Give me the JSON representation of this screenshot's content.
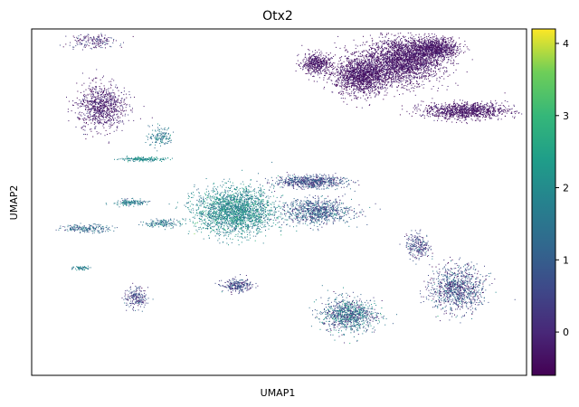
{
  "chart_data": {
    "type": "scatter",
    "title": "Otx2",
    "xlabel": "UMAP1",
    "ylabel": "UMAP2",
    "colormap": "viridis",
    "color_range": [
      -0.6,
      4.2
    ],
    "colorbar_ticks": [
      0,
      1,
      2,
      3,
      4
    ],
    "grid": false,
    "legend": "colorbar-right",
    "clusters": [
      {
        "name": "upper-right-large",
        "cx": 0.5,
        "cy": 0.82,
        "rx": 0.13,
        "ry": 0.11,
        "n": 2600,
        "value_mean": -0.3,
        "value_sd": 0.2
      },
      {
        "name": "upper-right-mid",
        "cx": 0.33,
        "cy": 0.73,
        "rx": 0.09,
        "ry": 0.09,
        "n": 1600,
        "value_mean": -0.3,
        "value_sd": 0.2
      },
      {
        "name": "upper-right-top",
        "cx": 0.63,
        "cy": 0.89,
        "rx": 0.08,
        "ry": 0.05,
        "n": 900,
        "value_mean": -0.3,
        "value_sd": 0.2
      },
      {
        "name": "upper-right-tail",
        "cx": 0.75,
        "cy": 0.53,
        "rx": 0.14,
        "ry": 0.04,
        "n": 1100,
        "value_mean": -0.3,
        "value_sd": 0.2
      },
      {
        "name": "upper-left-arm",
        "cx": 0.15,
        "cy": 0.8,
        "rx": 0.05,
        "ry": 0.05,
        "n": 500,
        "value_mean": -0.3,
        "value_sd": 0.2
      },
      {
        "name": "left-cluster",
        "cx": -0.72,
        "cy": 0.55,
        "rx": 0.08,
        "ry": 0.11,
        "n": 900,
        "value_mean": -0.2,
        "value_sd": 0.3
      },
      {
        "name": "center-big",
        "cx": -0.18,
        "cy": -0.05,
        "rx": 0.13,
        "ry": 0.11,
        "n": 2300,
        "value_mean": 1.9,
        "value_sd": 0.5
      },
      {
        "name": "center-right-strip",
        "cx": 0.15,
        "cy": -0.05,
        "rx": 0.12,
        "ry": 0.06,
        "n": 900,
        "value_mean": 0.9,
        "value_sd": 0.6
      },
      {
        "name": "center-upper-band",
        "cx": 0.12,
        "cy": 0.12,
        "rx": 0.12,
        "ry": 0.03,
        "n": 700,
        "value_mean": 0.7,
        "value_sd": 0.5
      },
      {
        "name": "lower-middle",
        "cx": 0.28,
        "cy": -0.65,
        "rx": 0.09,
        "ry": 0.08,
        "n": 1000,
        "value_mean": 1.2,
        "value_sd": 0.8
      },
      {
        "name": "lower-right",
        "cx": 0.72,
        "cy": -0.5,
        "rx": 0.09,
        "ry": 0.11,
        "n": 1000,
        "value_mean": 0.6,
        "value_sd": 0.7
      },
      {
        "name": "lower-left-small",
        "cx": -0.17,
        "cy": -0.48,
        "rx": 0.05,
        "ry": 0.03,
        "n": 250,
        "value_mean": 0.5,
        "value_sd": 0.5
      },
      {
        "name": "lower-right-arm",
        "cx": 0.56,
        "cy": -0.25,
        "rx": 0.04,
        "ry": 0.06,
        "n": 250,
        "value_mean": 0.5,
        "value_sd": 0.6
      },
      {
        "name": "top-left-wisps",
        "cx": -0.75,
        "cy": 0.93,
        "rx": 0.08,
        "ry": 0.04,
        "n": 180,
        "value_mean": 0.0,
        "value_sd": 0.5
      },
      {
        "name": "mid-left-streak-1",
        "cx": -0.55,
        "cy": 0.25,
        "rx": 0.07,
        "ry": 0.01,
        "n": 180,
        "value_mean": 2.0,
        "value_sd": 0.3
      },
      {
        "name": "mid-left-streak-2",
        "cx": -0.6,
        "cy": 0.0,
        "rx": 0.06,
        "ry": 0.015,
        "n": 150,
        "value_mean": 1.6,
        "value_sd": 0.4
      },
      {
        "name": "mid-left-streak-3",
        "cx": -0.78,
        "cy": -0.15,
        "rx": 0.08,
        "ry": 0.02,
        "n": 200,
        "value_mean": 1.2,
        "value_sd": 0.5
      },
      {
        "name": "mid-left-streak-4",
        "cx": -0.47,
        "cy": -0.12,
        "rx": 0.06,
        "ry": 0.02,
        "n": 150,
        "value_mean": 1.5,
        "value_sd": 0.5
      },
      {
        "name": "lower-left-streak",
        "cx": -0.8,
        "cy": -0.38,
        "rx": 0.03,
        "ry": 0.01,
        "n": 60,
        "value_mean": 1.7,
        "value_sd": 0.3
      },
      {
        "name": "lower-left-cluster",
        "cx": -0.58,
        "cy": -0.55,
        "rx": 0.04,
        "ry": 0.05,
        "n": 200,
        "value_mean": 0.4,
        "value_sd": 0.5
      },
      {
        "name": "center-streaks",
        "cx": -0.48,
        "cy": 0.38,
        "rx": 0.04,
        "ry": 0.05,
        "n": 150,
        "value_mean": 1.6,
        "value_sd": 0.4
      }
    ]
  }
}
